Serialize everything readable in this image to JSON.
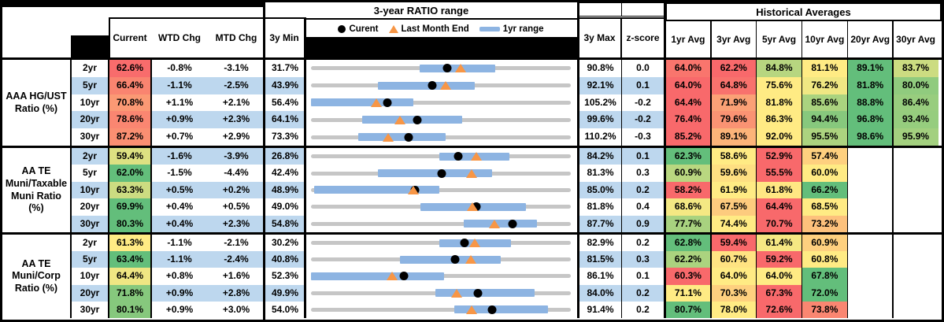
{
  "header": {
    "chart_title": "3-year RATIO range",
    "historical_title": "Historical Averages",
    "legend": {
      "current": "Curent",
      "last_month": "Last Month End",
      "range": "1yr range"
    },
    "columns": {
      "current": "Current",
      "wtd": "WTD Chg",
      "mtd": "MTD Chg",
      "min3y": "3y Min",
      "max3y": "3y Max",
      "zscore": "z-score",
      "averages": [
        "1yr Avg",
        "3yr Avg",
        "5yr Avg",
        "10yr Avg",
        "20yr Avg",
        "30yr Avg"
      ]
    }
  },
  "colors": {
    "band_blue": "#BDD7EE",
    "bar_blue": "#8DB4E2",
    "track_gray": "#C6C6C6",
    "marker_black": "#000000",
    "triangle_orange": "#F79646",
    "scale_red": "#F8696B",
    "scale_yellow": "#FFEB84",
    "scale_green": "#63BE7B"
  },
  "chart_data": {
    "type": "range-table",
    "note": "Each row: gray track spans 3y Min to 3y Max; blue bar is 1yr range; black dot = current; orange triangle = last month end (current minus MTD chg). Averages cells use red-yellow-green scale per row.",
    "groups": [
      {
        "label": "AAA HG/UST Ratio (%)",
        "rows": [
          {
            "tenor": "2yr",
            "current": 62.6,
            "wtd_chg": "-0.8%",
            "mtd_chg": "-3.1%",
            "min_3y": 31.7,
            "max_3y": 90.8,
            "z_score": "0.0",
            "range_1yr": [
              56.4,
              73.6
            ],
            "averages": [
              64.0,
              62.2,
              84.8,
              81.1,
              89.1,
              83.7
            ]
          },
          {
            "tenor": "5yr",
            "current": 66.4,
            "wtd_chg": "-1.1%",
            "mtd_chg": "-2.5%",
            "min_3y": 43.9,
            "max_3y": 92.1,
            "z_score": "0.1",
            "range_1yr": [
              56.3,
              74.3
            ],
            "averages": [
              64.0,
              64.8,
              75.6,
              76.2,
              81.8,
              80.0
            ]
          },
          {
            "tenor": "10yr",
            "current": 70.8,
            "wtd_chg": "+1.1%",
            "mtd_chg": "+2.1%",
            "min_3y": 56.4,
            "max_3y": 105.2,
            "z_score": "-0.2",
            "range_1yr": [
              56.4,
              75.6
            ],
            "averages": [
              64.4,
              71.9,
              81.8,
              85.6,
              88.8,
              86.4
            ]
          },
          {
            "tenor": "20yr",
            "current": 78.6,
            "wtd_chg": "+0.9%",
            "mtd_chg": "+2.3%",
            "min_3y": 64.1,
            "max_3y": 99.6,
            "z_score": "-0.2",
            "range_1yr": [
              71.1,
              84.8
            ],
            "averages": [
              76.4,
              79.6,
              86.3,
              94.4,
              96.8,
              93.4
            ]
          },
          {
            "tenor": "30yr",
            "current": 87.2,
            "wtd_chg": "+0.7%",
            "mtd_chg": "+2.9%",
            "min_3y": 73.3,
            "max_3y": 110.2,
            "z_score": "-0.3",
            "range_1yr": [
              80.0,
              92.4
            ],
            "averages": [
              85.2,
              89.1,
              92.0,
              95.5,
              98.6,
              95.9
            ]
          }
        ]
      },
      {
        "label": "AA TE Muni/Taxable Muni Ratio (%)",
        "rows": [
          {
            "tenor": "2yr",
            "current": 59.4,
            "wtd_chg": "-1.6%",
            "mtd_chg": "-3.9%",
            "min_3y": 26.8,
            "max_3y": 84.2,
            "z_score": "0.1",
            "range_1yr": [
              55.2,
              70.6
            ],
            "averages": [
              62.3,
              58.6,
              52.9,
              57.4,
              null,
              null
            ]
          },
          {
            "tenor": "5yr",
            "current": 62.0,
            "wtd_chg": "-1.5%",
            "mtd_chg": "-4.4%",
            "min_3y": 42.4,
            "max_3y": 81.3,
            "z_score": "0.3",
            "range_1yr": [
              52.4,
              69.5
            ],
            "averages": [
              60.9,
              59.6,
              55.5,
              60.0,
              null,
              null
            ]
          },
          {
            "tenor": "10yr",
            "current": 63.3,
            "wtd_chg": "+0.5%",
            "mtd_chg": "+0.2%",
            "min_3y": 48.9,
            "max_3y": 85.0,
            "z_score": "0.2",
            "range_1yr": [
              49.3,
              66.7
            ],
            "averages": [
              58.2,
              61.9,
              61.8,
              66.2,
              null,
              null
            ]
          },
          {
            "tenor": "20yr",
            "current": 69.9,
            "wtd_chg": "+0.4%",
            "mtd_chg": "+0.5%",
            "min_3y": 49.0,
            "max_3y": 81.8,
            "z_score": "0.4",
            "range_1yr": [
              62.8,
              76.1
            ],
            "averages": [
              68.6,
              67.5,
              64.4,
              68.5,
              null,
              null
            ]
          },
          {
            "tenor": "30yr",
            "current": 80.3,
            "wtd_chg": "+0.4%",
            "mtd_chg": "+2.3%",
            "min_3y": 54.8,
            "max_3y": 87.7,
            "z_score": "0.9",
            "range_1yr": [
              74.1,
              83.4
            ],
            "averages": [
              77.7,
              74.4,
              70.7,
              73.2,
              null,
              null
            ]
          }
        ]
      },
      {
        "label": "AA TE Muni/Corp Ratio (%)",
        "rows": [
          {
            "tenor": "2yr",
            "current": 61.3,
            "wtd_chg": "-1.1%",
            "mtd_chg": "-2.1%",
            "min_3y": 30.2,
            "max_3y": 82.9,
            "z_score": "0.2",
            "range_1yr": [
              56.2,
              70.8
            ],
            "averages": [
              62.8,
              59.4,
              61.4,
              60.9,
              null,
              null
            ]
          },
          {
            "tenor": "5yr",
            "current": 63.4,
            "wtd_chg": "-1.1%",
            "mtd_chg": "-2.4%",
            "min_3y": 40.8,
            "max_3y": 81.5,
            "z_score": "0.3",
            "range_1yr": [
              54.7,
              70.5
            ],
            "averages": [
              62.2,
              60.7,
              59.2,
              60.8,
              null,
              null
            ]
          },
          {
            "tenor": "10yr",
            "current": 64.4,
            "wtd_chg": "+0.8%",
            "mtd_chg": "+1.6%",
            "min_3y": 52.3,
            "max_3y": 86.1,
            "z_score": "0.1",
            "range_1yr": [
              52.3,
              69.6
            ],
            "averages": [
              60.3,
              64.0,
              64.0,
              67.8,
              null,
              null
            ]
          },
          {
            "tenor": "20yr",
            "current": 71.8,
            "wtd_chg": "+0.9%",
            "mtd_chg": "+2.8%",
            "min_3y": 49.9,
            "max_3y": 84.0,
            "z_score": "0.2",
            "range_1yr": [
              66.2,
              79.2
            ],
            "averages": [
              71.1,
              70.3,
              67.3,
              72.0,
              null,
              null
            ]
          },
          {
            "tenor": "30yr",
            "current": 80.1,
            "wtd_chg": "+0.9%",
            "mtd_chg": "+3.0%",
            "min_3y": 54.0,
            "max_3y": 91.4,
            "z_score": "0.2",
            "range_1yr": [
              74.6,
              88.1
            ],
            "averages": [
              80.7,
              78.0,
              72.6,
              73.8,
              null,
              null
            ]
          }
        ]
      }
    ]
  }
}
